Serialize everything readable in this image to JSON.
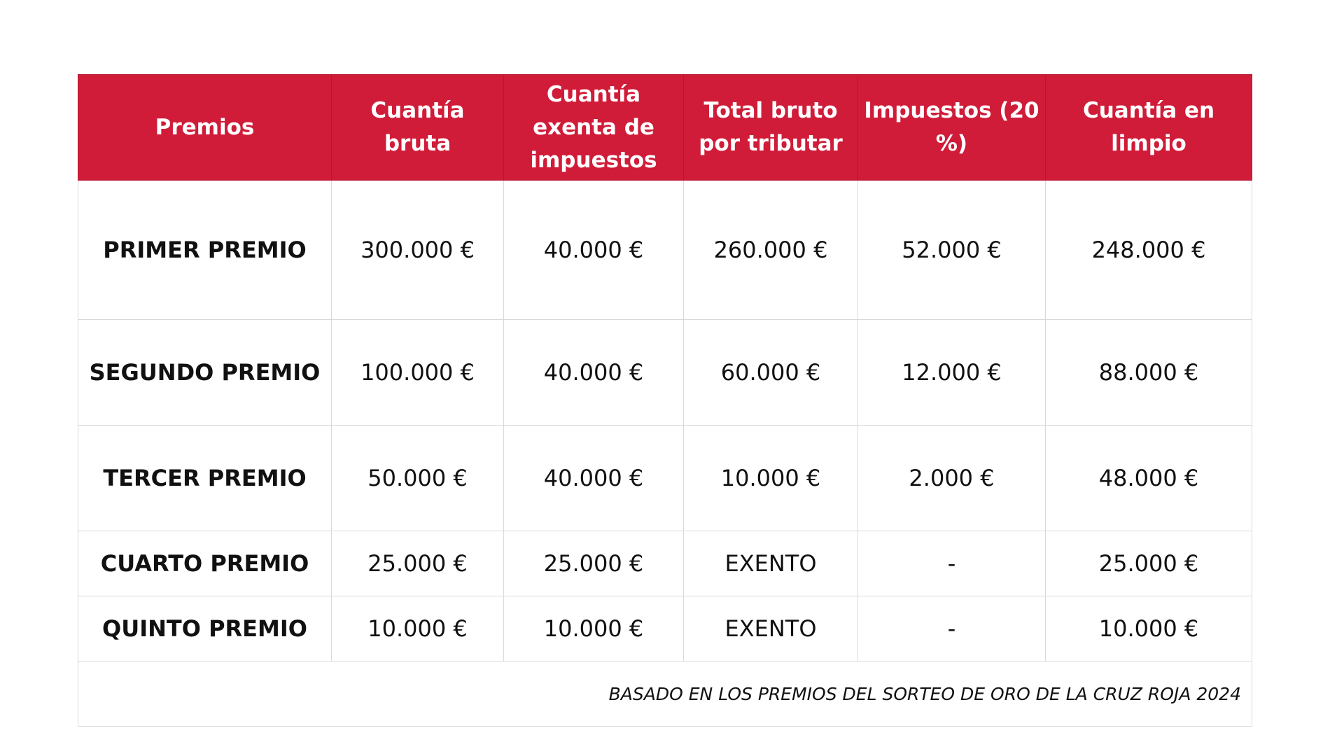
{
  "table": {
    "headers": [
      "Premios",
      "Cuantía bruta",
      "Cuantía exenta de impuestos",
      "Total bruto por tributar",
      "Impuestos (20 %)",
      "Cuantía en limpio"
    ],
    "rows": [
      [
        "PRIMER PREMIO",
        "300.000 €",
        "40.000 €",
        "260.000 €",
        "52.000 €",
        "248.000 €"
      ],
      [
        "SEGUNDO PREMIO",
        "100.000 €",
        "40.000 €",
        "60.000 €",
        "12.000 €",
        "88.000 €"
      ],
      [
        "TERCER PREMIO",
        "50.000 €",
        "40.000 €",
        "10.000 €",
        "2.000 €",
        "48.000 €"
      ],
      [
        "CUARTO PREMIO",
        "25.000 €",
        "25.000 €",
        "EXENTO",
        "-",
        "25.000 €"
      ],
      [
        "QUINTO PREMIO",
        "10.000 €",
        "10.000 €",
        "EXENTO",
        "-",
        "10.000 €"
      ]
    ],
    "footnote": "BASADO EN LOS PREMIOS DEL SORTEO DE ORO DE LA CRUZ ROJA 2024"
  },
  "colors": {
    "header_bg": "#d01c39",
    "header_text": "#ffffff",
    "border": "#d9d9d9"
  }
}
